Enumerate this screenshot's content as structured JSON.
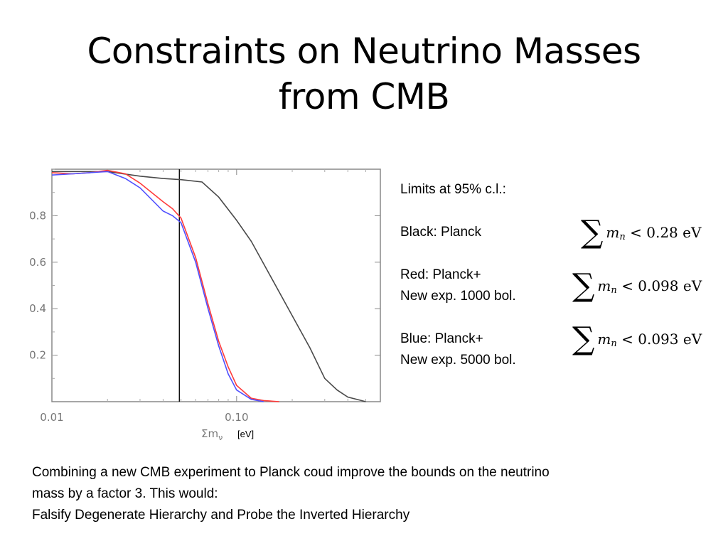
{
  "title": {
    "line1": "Constraints on Neutrino Masses",
    "line2": "from CMB"
  },
  "notes": {
    "limits_header": "Limits at 95% c.l.:",
    "black": "Black: Planck",
    "red_1": "Red: Planck+",
    "red_2": "New exp. 1000 bol.",
    "blue_1": "Blue: Planck+",
    "blue_2": "New exp. 5000 bol."
  },
  "formulas": {
    "sum_symbol": "∑",
    "m": "m",
    "n": "n",
    "black": "< 0.28 eV",
    "red": "< 0.098 eV",
    "blue": "< 0.093 eV"
  },
  "bottom": {
    "line1": "Combining a new CMB experiment to Planck coud improve the bounds on the neutrino",
    "line2": "mass by a factor 3.  This would:",
    "line3": "Falsify Degenerate Hierarchy and Probe the Inverted Hierarchy"
  },
  "chart_data": {
    "type": "line",
    "xscale": "log",
    "xlim": [
      0.01,
      0.6
    ],
    "ylim": [
      0,
      1
    ],
    "xticks": [
      0.01,
      0.1
    ],
    "xtick_labels": [
      "0.01",
      "0.10"
    ],
    "yticks": [
      0.2,
      0.4,
      0.6,
      0.8
    ],
    "ytick_labels": [
      "0.2",
      "0.4",
      "0.6",
      "0.8"
    ],
    "xlabel": "Σm",
    "xlabel_subscript": "ν",
    "xunit": "[eV]",
    "vline_x": 0.049,
    "series": [
      {
        "color": "#4a4a4a",
        "points": [
          [
            0.01,
            0.99
          ],
          [
            0.015,
            0.99
          ],
          [
            0.02,
            0.99
          ],
          [
            0.03,
            0.97
          ],
          [
            0.04,
            0.96
          ],
          [
            0.05,
            0.955
          ],
          [
            0.065,
            0.945
          ],
          [
            0.08,
            0.88
          ],
          [
            0.1,
            0.78
          ],
          [
            0.12,
            0.69
          ],
          [
            0.15,
            0.55
          ],
          [
            0.2,
            0.37
          ],
          [
            0.25,
            0.23
          ],
          [
            0.3,
            0.1
          ],
          [
            0.35,
            0.05
          ],
          [
            0.4,
            0.02
          ],
          [
            0.5,
            0.0
          ]
        ]
      },
      {
        "color": "#ff3b3b",
        "points": [
          [
            0.01,
            0.985
          ],
          [
            0.013,
            0.98
          ],
          [
            0.016,
            0.985
          ],
          [
            0.02,
            0.995
          ],
          [
            0.025,
            0.98
          ],
          [
            0.03,
            0.94
          ],
          [
            0.04,
            0.86
          ],
          [
            0.045,
            0.83
          ],
          [
            0.05,
            0.79
          ],
          [
            0.06,
            0.62
          ],
          [
            0.07,
            0.42
          ],
          [
            0.08,
            0.26
          ],
          [
            0.09,
            0.15
          ],
          [
            0.1,
            0.07
          ],
          [
            0.12,
            0.015
          ],
          [
            0.14,
            0.005
          ],
          [
            0.17,
            0.0
          ]
        ]
      },
      {
        "color": "#5050ff",
        "points": [
          [
            0.01,
            0.975
          ],
          [
            0.013,
            0.98
          ],
          [
            0.016,
            0.985
          ],
          [
            0.02,
            0.99
          ],
          [
            0.025,
            0.96
          ],
          [
            0.03,
            0.92
          ],
          [
            0.04,
            0.82
          ],
          [
            0.045,
            0.8
          ],
          [
            0.05,
            0.77
          ],
          [
            0.06,
            0.6
          ],
          [
            0.07,
            0.4
          ],
          [
            0.08,
            0.24
          ],
          [
            0.09,
            0.12
          ],
          [
            0.1,
            0.05
          ],
          [
            0.12,
            0.01
          ],
          [
            0.14,
            0.0
          ]
        ]
      }
    ]
  }
}
